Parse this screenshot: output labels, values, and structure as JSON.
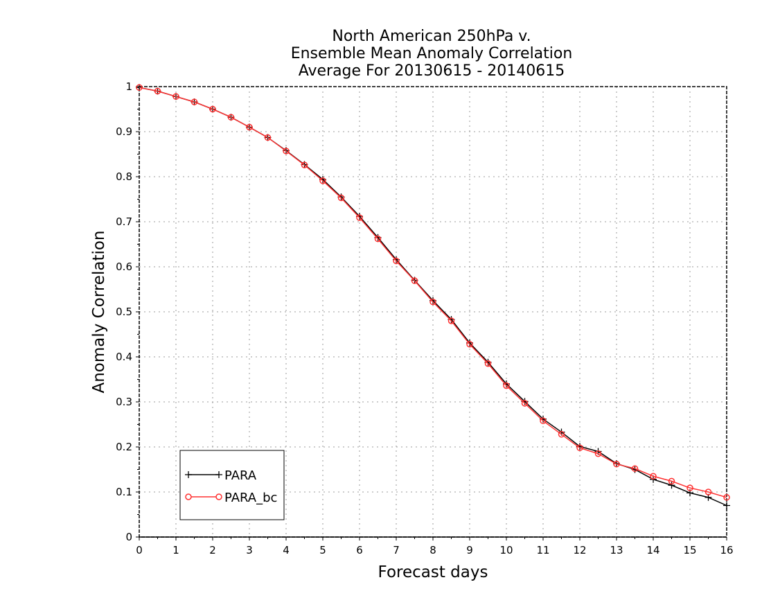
{
  "chart_data": {
    "type": "line",
    "title_lines": [
      "North American 250hPa v.",
      "Ensemble Mean Anomaly Correlation",
      "Average For 20130615 - 20140615"
    ],
    "xlabel": "Forecast days",
    "ylabel": "Anomaly Correlation",
    "xlim": [
      0,
      16
    ],
    "ylim": [
      0,
      1
    ],
    "x_ticks": [
      "0",
      "1",
      "2",
      "3",
      "4",
      "5",
      "6",
      "7",
      "8",
      "9",
      "10",
      "11",
      "12",
      "13",
      "14",
      "15",
      "16"
    ],
    "y_ticks": [
      "0",
      "0.1",
      "0.2",
      "0.3",
      "0.4",
      "0.5",
      "0.6",
      "0.7",
      "0.8",
      "0.9",
      "1"
    ],
    "grid": true,
    "legend_position": "bottom-left",
    "x": [
      0,
      0.5,
      1,
      1.5,
      2,
      2.5,
      3,
      3.5,
      4,
      4.5,
      5,
      5.5,
      6,
      6.5,
      7,
      7.5,
      8,
      8.5,
      9,
      9.5,
      10,
      10.5,
      11,
      11.5,
      12,
      12.5,
      13,
      13.5,
      14,
      14.5,
      15,
      15.5,
      16
    ],
    "series": [
      {
        "name": "PARA",
        "color": "#000000",
        "marker": "plus",
        "values": [
          0.998,
          0.99,
          0.978,
          0.966,
          0.95,
          0.932,
          0.91,
          0.887,
          0.858,
          0.827,
          0.794,
          0.755,
          0.712,
          0.665,
          0.616,
          0.57,
          0.525,
          0.483,
          0.431,
          0.388,
          0.34,
          0.301,
          0.262,
          0.233,
          0.201,
          0.19,
          0.163,
          0.15,
          0.128,
          0.115,
          0.098,
          0.088,
          0.07
        ]
      },
      {
        "name": "PARA_bc",
        "color": "#ff3030",
        "marker": "circle",
        "values": [
          0.998,
          0.99,
          0.978,
          0.966,
          0.95,
          0.932,
          0.91,
          0.887,
          0.857,
          0.826,
          0.791,
          0.753,
          0.709,
          0.662,
          0.613,
          0.569,
          0.522,
          0.48,
          0.428,
          0.385,
          0.336,
          0.297,
          0.258,
          0.228,
          0.198,
          0.185,
          0.162,
          0.152,
          0.135,
          0.124,
          0.109,
          0.1,
          0.088
        ]
      }
    ]
  }
}
